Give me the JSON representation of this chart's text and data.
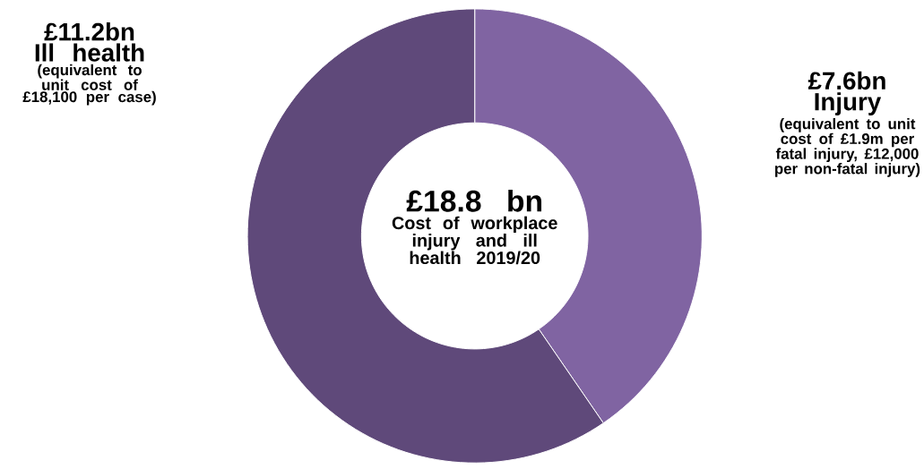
{
  "chart_data": {
    "type": "donut",
    "title": "£18.8 bn",
    "subtitle": "Cost of workplace injury and ill health 2019/20",
    "categories": [
      "Injury",
      "Ill health"
    ],
    "values": [
      7.6,
      11.2
    ],
    "colors": [
      "#8064a2",
      "#5f497a"
    ],
    "value_labels": [
      "£7.6bn",
      "£11.2bn"
    ],
    "annotations": [
      "(equivalent to unit cost of £1.9m per fatal injury, £12,000 per non-fatal injury)",
      "(equivalent to unit cost of £18,100 per case)"
    ]
  }
}
